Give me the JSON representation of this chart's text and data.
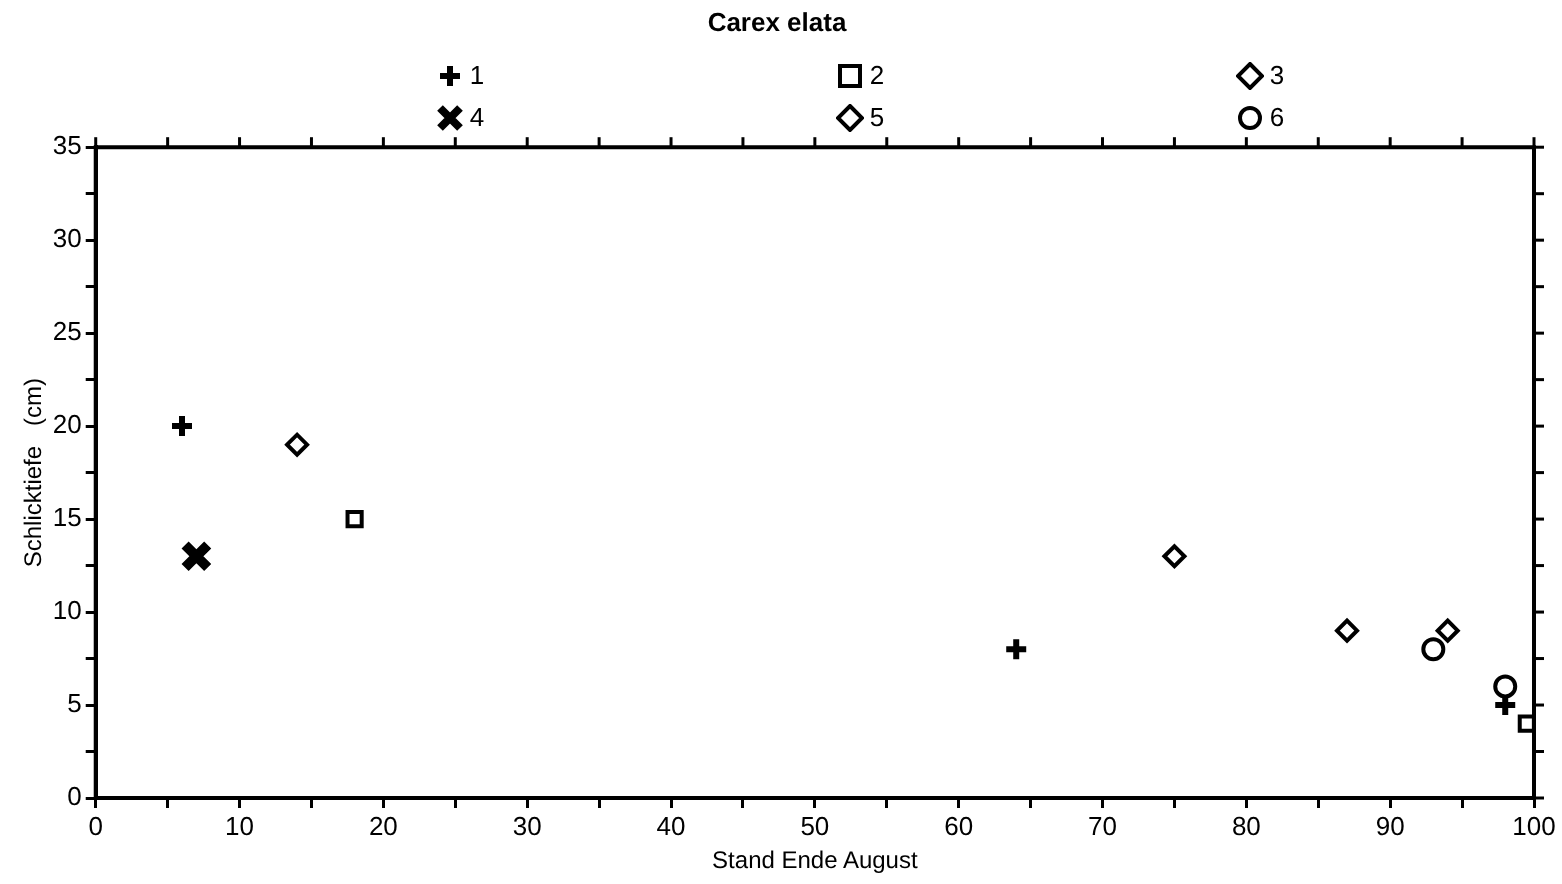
{
  "chart_data": {
    "type": "scatter",
    "title": "Carex elata",
    "xlabel": "Stand Ende August",
    "ylabel": "Schlicktiefe   (cm)",
    "xlim": [
      0,
      100
    ],
    "xticks": [
      0,
      {
        "value": 5,
        "label": null
      },
      10,
      {
        "value": 15,
        "label": null
      },
      20,
      {
        "value": 25,
        "label": null
      },
      30,
      {
        "value": 35,
        "label": null
      },
      40,
      {
        "value": 45,
        "label": null
      },
      50,
      {
        "value": 55,
        "label": null
      },
      60,
      {
        "value": 65,
        "label": null
      },
      70,
      {
        "value": 75,
        "label": null
      },
      80,
      {
        "value": 85,
        "label": null
      },
      90,
      {
        "value": 95,
        "label": null
      },
      100
    ],
    "ylim": [
      0,
      35
    ],
    "yticks": [
      0,
      {
        "value": 2.5,
        "label": null
      },
      5,
      {
        "value": 7.5,
        "label": null
      },
      10,
      {
        "value": 12.5,
        "label": null
      },
      15,
      {
        "value": 17.5,
        "label": null
      },
      20,
      {
        "value": 22.5,
        "label": null
      },
      25,
      {
        "value": 27.5,
        "label": null
      },
      30,
      {
        "value": 32.5,
        "label": null
      },
      35
    ],
    "grid": false,
    "legend": "top",
    "series": [
      {
        "name": "1",
        "color": "#000000",
        "marker": "cross",
        "x": [
          6,
          64,
          98
        ],
        "values": [
          20,
          8,
          5
        ]
      },
      {
        "name": "2",
        "color": "#000000",
        "marker": "square",
        "x": [
          18,
          99.5
        ],
        "values": [
          15,
          4
        ]
      },
      {
        "name": "3",
        "color": "#000000",
        "marker": "diamond",
        "x": [
          14,
          75
        ],
        "values": [
          19,
          13
        ]
      },
      {
        "name": "4",
        "color": "#000000",
        "marker": "cross",
        "x": [
          7
        ],
        "values": [
          13
        ]
      },
      {
        "name": "5",
        "color": "#000000",
        "marker": "diamond",
        "x": [
          87,
          94
        ],
        "values": [
          9,
          9
        ]
      },
      {
        "name": "6",
        "color": "#000000",
        "marker": "circle",
        "x": [
          93,
          98
        ],
        "values": [
          8,
          6
        ]
      }
    ]
  }
}
